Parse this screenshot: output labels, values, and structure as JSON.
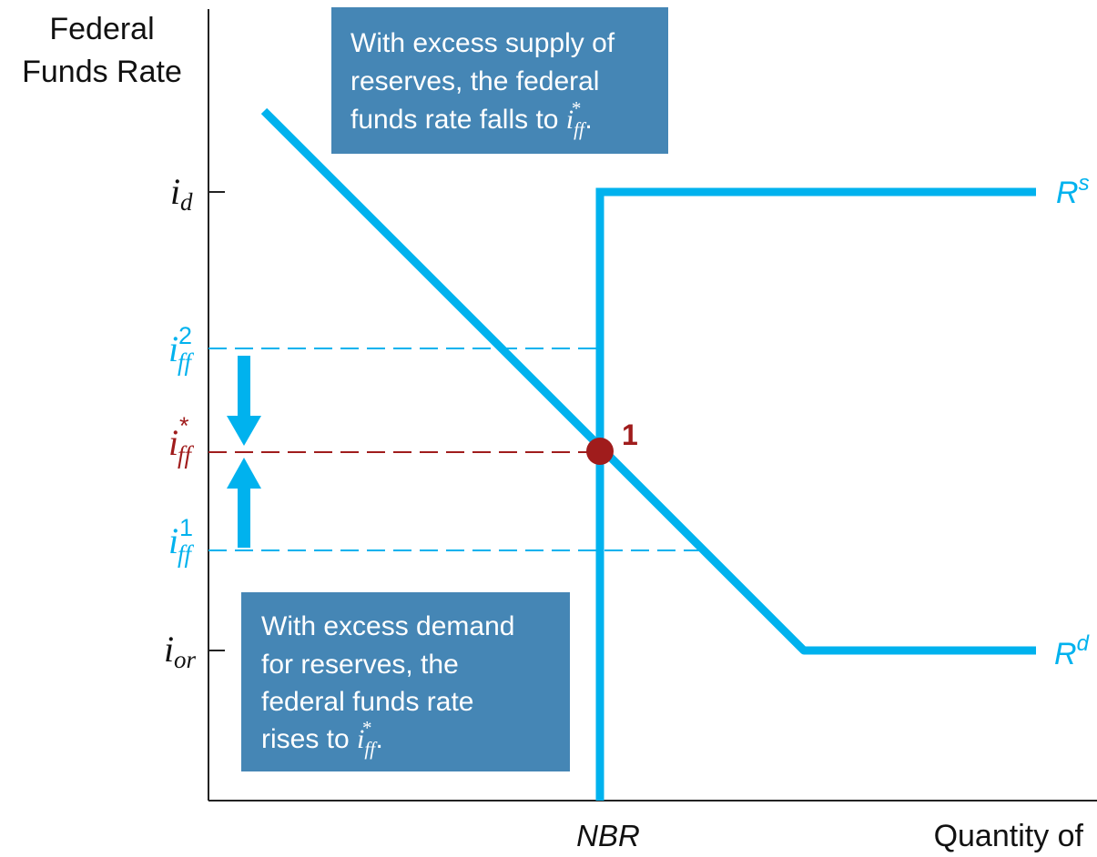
{
  "colors": {
    "curve": "#00b2ee",
    "equilibrium": "#a01c1c",
    "box_fill": "#4586b5",
    "axis": "#222222"
  },
  "axes": {
    "y_label_line1": "Federal",
    "y_label_line2": "Funds Rate",
    "x_label": "Quantity of"
  },
  "ticks": {
    "i_d": {
      "main": "i",
      "sub": "d"
    },
    "i_ff2": {
      "main": "i",
      "sub": "ff",
      "sup": "2"
    },
    "i_ff_star": {
      "main": "i",
      "sub": "ff",
      "sup": "*"
    },
    "i_ff1": {
      "main": "i",
      "sub": "ff",
      "sup": "1"
    },
    "i_or": {
      "main": "i",
      "sub": "or"
    }
  },
  "curves": {
    "supply": {
      "main": "R",
      "sup": "s"
    },
    "demand": {
      "main": "R",
      "sup": "d"
    }
  },
  "nbr_label": "NBR",
  "equilibrium_label": "1",
  "boxes": {
    "top": {
      "line1": "With excess supply of",
      "line2": "reserves, the federal",
      "line3": "funds rate falls to ",
      "i": "i",
      "sub": "ff",
      "sup": "*",
      "end": "."
    },
    "bottom": {
      "line1": "With excess demand",
      "line2": "for reserves, the",
      "line3": "federal funds rate",
      "line4": "rises to ",
      "i": "i",
      "sub": "ff",
      "sup": "*",
      "end": "."
    }
  }
}
